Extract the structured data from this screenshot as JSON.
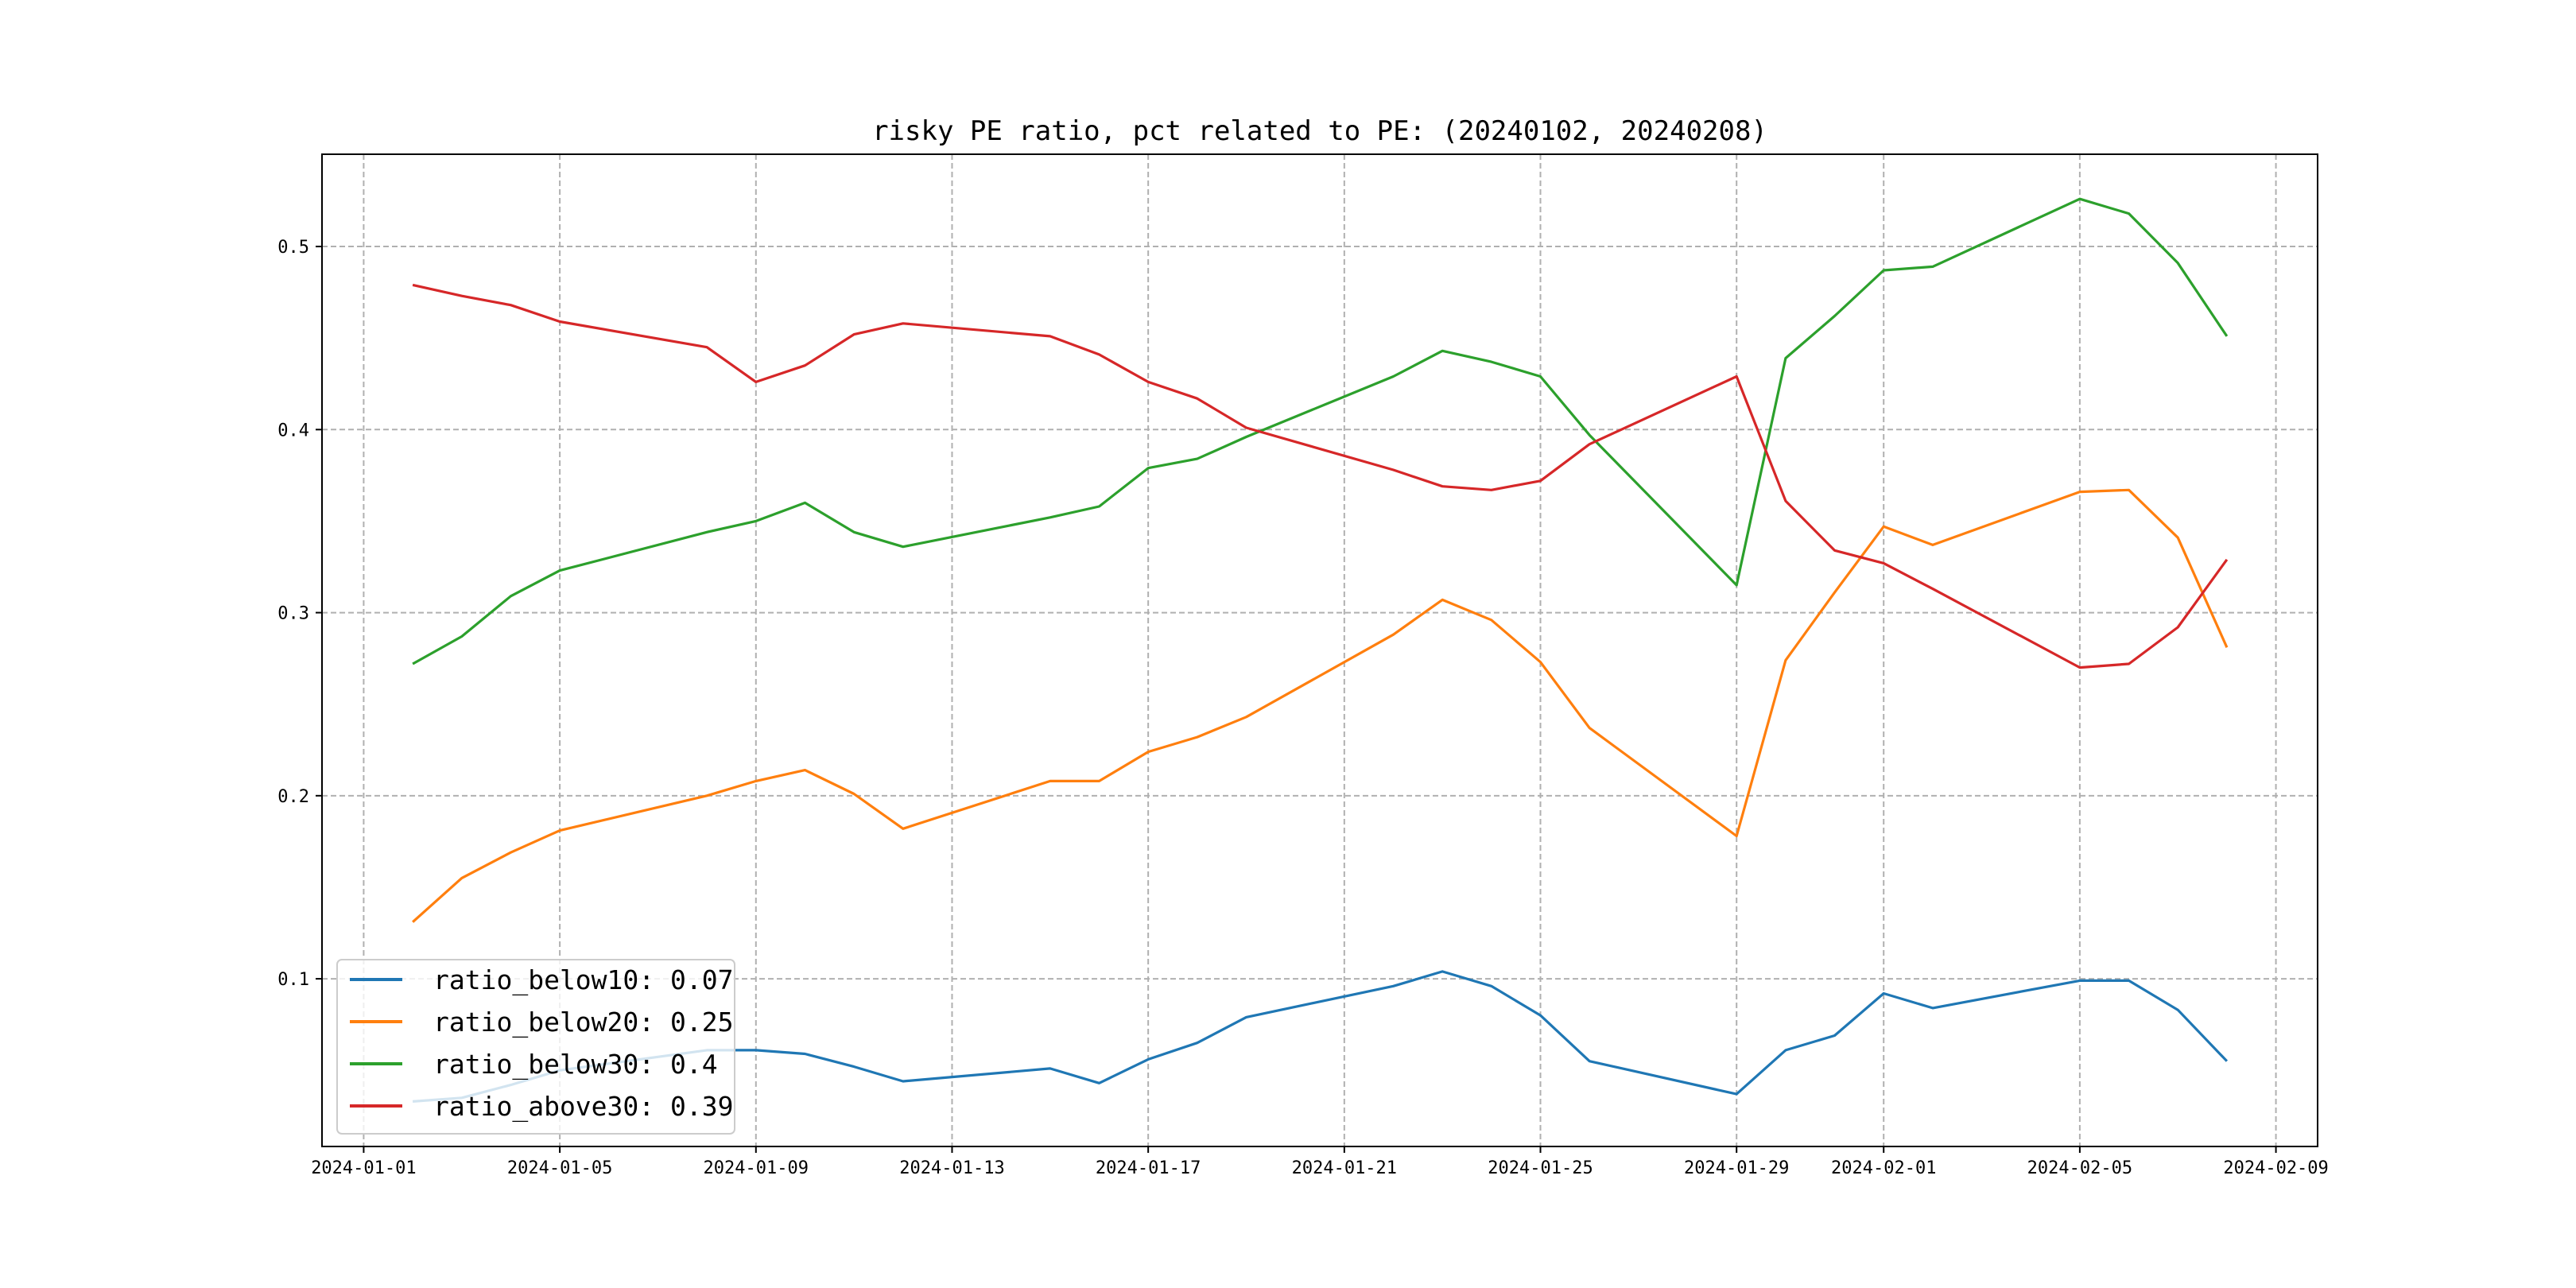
{
  "chart_data": {
    "type": "line",
    "title": "risky PE ratio, pct related to PE: (20240102, 20240208)",
    "xlabel": "",
    "ylabel": "",
    "x": [
      "2024-01-02",
      "2024-01-03",
      "2024-01-04",
      "2024-01-05",
      "2024-01-08",
      "2024-01-09",
      "2024-01-10",
      "2024-01-11",
      "2024-01-12",
      "2024-01-15",
      "2024-01-16",
      "2024-01-17",
      "2024-01-18",
      "2024-01-19",
      "2024-01-22",
      "2024-01-23",
      "2024-01-24",
      "2024-01-25",
      "2024-01-26",
      "2024-01-29",
      "2024-01-30",
      "2024-01-31",
      "2024-02-01",
      "2024-02-02",
      "2024-02-05",
      "2024-02-06",
      "2024-02-07",
      "2024-02-08"
    ],
    "series": [
      {
        "name": "ratio_below10",
        "legend_label": "ratio_below10: 0.07",
        "color": "#1f77b4",
        "values": [
          0.033,
          0.035,
          0.042,
          0.05,
          0.061,
          0.061,
          0.059,
          0.052,
          0.044,
          0.051,
          0.043,
          0.056,
          0.065,
          0.079,
          0.096,
          0.104,
          0.096,
          0.08,
          0.055,
          0.037,
          0.061,
          0.069,
          0.092,
          0.084,
          0.099,
          0.099,
          0.083,
          0.055
        ]
      },
      {
        "name": "ratio_below20",
        "legend_label": "ratio_below20: 0.25",
        "color": "#ff7f0e",
        "values": [
          0.131,
          0.155,
          0.169,
          0.181,
          0.2,
          0.208,
          0.214,
          0.201,
          0.182,
          0.208,
          0.208,
          0.224,
          0.232,
          0.243,
          0.288,
          0.307,
          0.296,
          0.273,
          0.237,
          0.178,
          0.274,
          0.311,
          0.347,
          0.337,
          0.366,
          0.367,
          0.341,
          0.281
        ]
      },
      {
        "name": "ratio_below30",
        "legend_label": "ratio_below30: 0.4",
        "color": "#2ca02c",
        "values": [
          0.272,
          0.287,
          0.309,
          0.323,
          0.344,
          0.35,
          0.36,
          0.344,
          0.336,
          0.352,
          0.358,
          0.379,
          0.384,
          0.396,
          0.429,
          0.443,
          0.437,
          0.429,
          0.397,
          0.315,
          0.439,
          0.462,
          0.487,
          0.489,
          0.526,
          0.518,
          0.491,
          0.451
        ]
      },
      {
        "name": "ratio_above30",
        "legend_label": "ratio_above30: 0.39",
        "color": "#d62728",
        "values": [
          0.479,
          0.473,
          0.468,
          0.459,
          0.445,
          0.426,
          0.435,
          0.452,
          0.458,
          0.451,
          0.441,
          0.426,
          0.417,
          0.401,
          0.378,
          0.369,
          0.367,
          0.372,
          0.392,
          0.429,
          0.361,
          0.334,
          0.327,
          0.313,
          0.27,
          0.272,
          0.292,
          0.329
        ]
      }
    ],
    "xticks": [
      "2024-01-01",
      "2024-01-05",
      "2024-01-09",
      "2024-01-13",
      "2024-01-17",
      "2024-01-21",
      "2024-01-25",
      "2024-01-29",
      "2024-02-01",
      "2024-02-05",
      "2024-02-09"
    ],
    "yticks": [
      "0.1",
      "0.2",
      "0.3",
      "0.4",
      "0.5"
    ],
    "xlim": [
      "2023-12-31T03:36",
      "2024-02-09T20:24"
    ],
    "ylim": [
      0.0084,
      0.5504
    ],
    "grid": true,
    "legend_position": "lower-left"
  }
}
